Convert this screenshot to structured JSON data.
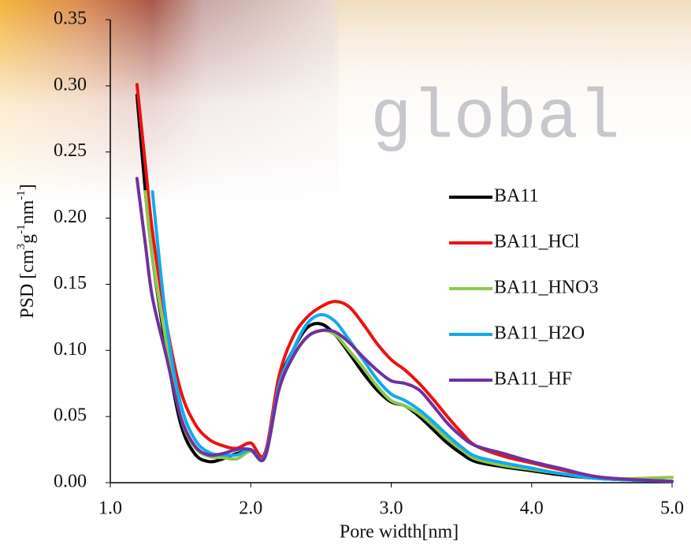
{
  "background_text": "global",
  "chart_data": {
    "type": "line",
    "xlabel": "Pore width[nm]",
    "ylabel": [
      {
        "text": "PSD [cm"
      },
      {
        "text": "3",
        "sup": true
      },
      {
        "text": "g"
      },
      {
        "text": "-1",
        "sup": true
      },
      {
        "text": "nm"
      },
      {
        "text": "-1",
        "sup": true
      },
      {
        "text": "]"
      }
    ],
    "x": [
      1.19,
      1.25,
      1.3,
      1.4,
      1.5,
      1.6,
      1.7,
      1.8,
      1.9,
      2.0,
      2.1,
      2.2,
      2.3,
      2.4,
      2.5,
      2.6,
      2.7,
      2.8,
      2.9,
      3.0,
      3.1,
      3.2,
      3.3,
      3.4,
      3.5,
      3.6,
      3.8,
      4.0,
      4.2,
      4.5,
      5.0
    ],
    "series": [
      {
        "name": "BA11",
        "color": "#000000",
        "values": [
          0.293,
          0.22,
          0.17,
          0.1,
          0.045,
          0.022,
          0.016,
          0.018,
          0.022,
          0.024,
          0.022,
          0.075,
          0.1,
          0.117,
          0.12,
          0.112,
          0.098,
          0.083,
          0.07,
          0.061,
          0.058,
          0.05,
          0.04,
          0.03,
          0.022,
          0.016,
          0.012,
          0.009,
          0.006,
          0.003,
          0.001
        ]
      },
      {
        "name": "BA11_HCl",
        "color": "#ee1111",
        "values": [
          0.301,
          0.24,
          0.19,
          0.12,
          0.07,
          0.045,
          0.033,
          0.028,
          0.026,
          0.03,
          0.022,
          0.08,
          0.11,
          0.125,
          0.133,
          0.137,
          0.133,
          0.12,
          0.105,
          0.093,
          0.085,
          0.075,
          0.063,
          0.05,
          0.038,
          0.028,
          0.02,
          0.015,
          0.01,
          0.004,
          0.001
        ]
      },
      {
        "name": "BA11_HNO3",
        "color": "#8cc84b",
        "values": [
          null,
          0.22,
          0.17,
          0.105,
          0.05,
          0.027,
          0.02,
          0.019,
          0.018,
          0.024,
          0.019,
          0.07,
          0.095,
          0.11,
          0.115,
          0.112,
          0.1,
          0.087,
          0.073,
          0.062,
          0.058,
          0.052,
          0.043,
          0.033,
          0.025,
          0.018,
          0.013,
          0.01,
          0.007,
          0.003,
          0.004
        ]
      },
      {
        "name": "BA11_H2O",
        "color": "#11aaee",
        "values": [
          null,
          null,
          0.22,
          0.12,
          0.06,
          0.033,
          0.023,
          0.021,
          0.021,
          0.025,
          0.02,
          0.073,
          0.1,
          0.12,
          0.127,
          0.122,
          0.108,
          0.093,
          0.078,
          0.067,
          0.062,
          0.055,
          0.046,
          0.036,
          0.027,
          0.02,
          0.015,
          0.011,
          0.007,
          0.003,
          0.001
        ]
      },
      {
        "name": "BA11_HF",
        "color": "#7030a0",
        "values": [
          0.23,
          0.18,
          0.14,
          0.095,
          0.05,
          0.028,
          0.021,
          0.022,
          0.025,
          0.025,
          0.019,
          0.07,
          0.095,
          0.11,
          0.115,
          0.114,
          0.106,
          0.095,
          0.085,
          0.077,
          0.075,
          0.07,
          0.058,
          0.045,
          0.035,
          0.028,
          0.022,
          0.016,
          0.011,
          0.004,
          0.001
        ]
      }
    ],
    "xlim": [
      1.0,
      5.0
    ],
    "xticks": [
      {
        "value": 1.0,
        "label": "1.0"
      },
      {
        "value": 2.0,
        "label": "2.0"
      },
      {
        "value": 3.0,
        "label": "3.0"
      },
      {
        "value": 4.0,
        "label": "4.0"
      },
      {
        "value": 5.0,
        "label": "5.0"
      }
    ],
    "ylim": [
      0,
      0.35
    ],
    "yticks": [
      {
        "value": 0,
        "label": "0.00"
      },
      {
        "value": 0.05,
        "label": "0.05"
      },
      {
        "value": 0.1,
        "label": "0.10"
      },
      {
        "value": 0.15,
        "label": "0.15"
      },
      {
        "value": 0.2,
        "label": "0.20"
      },
      {
        "value": 0.25,
        "label": "0.25"
      },
      {
        "value": 0.3,
        "label": "0.30"
      },
      {
        "value": 0.35,
        "label": "0.35"
      }
    ],
    "grid": false,
    "legend_position": "right"
  }
}
